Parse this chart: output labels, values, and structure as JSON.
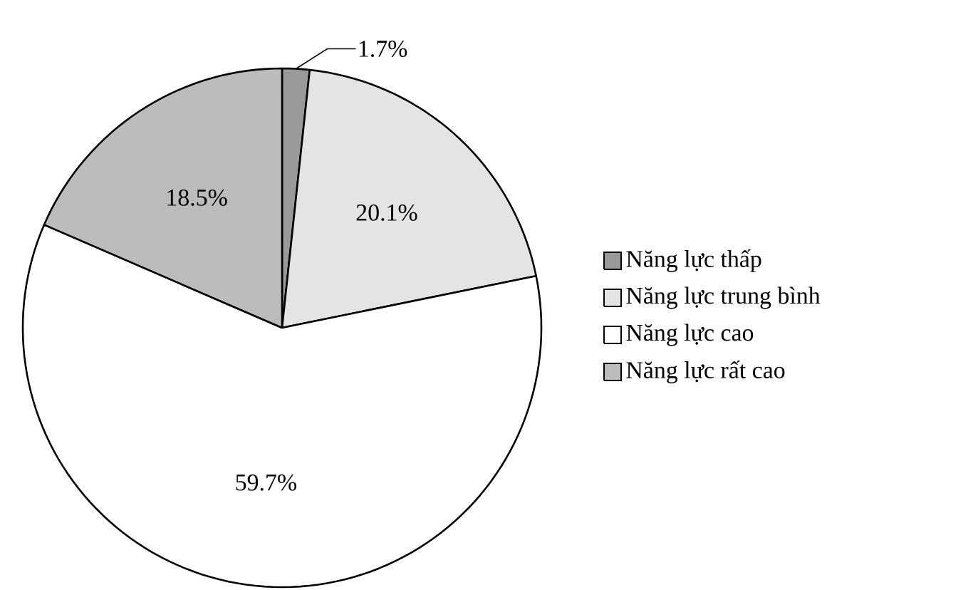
{
  "chart_data": {
    "type": "pie",
    "categories": [
      "Năng lực thấp",
      "Năng lực trung bình",
      "Năng lực cao",
      "Năng lực rất cao"
    ],
    "values": [
      1.7,
      20.1,
      59.7,
      18.5
    ],
    "value_labels": [
      "1.7%",
      "20.1%",
      "59.7%",
      "18.5%"
    ],
    "colors": [
      "#9a9a9a",
      "#e4e4e4",
      "#ffffff",
      "#bcbcbc"
    ],
    "legend": "right"
  }
}
